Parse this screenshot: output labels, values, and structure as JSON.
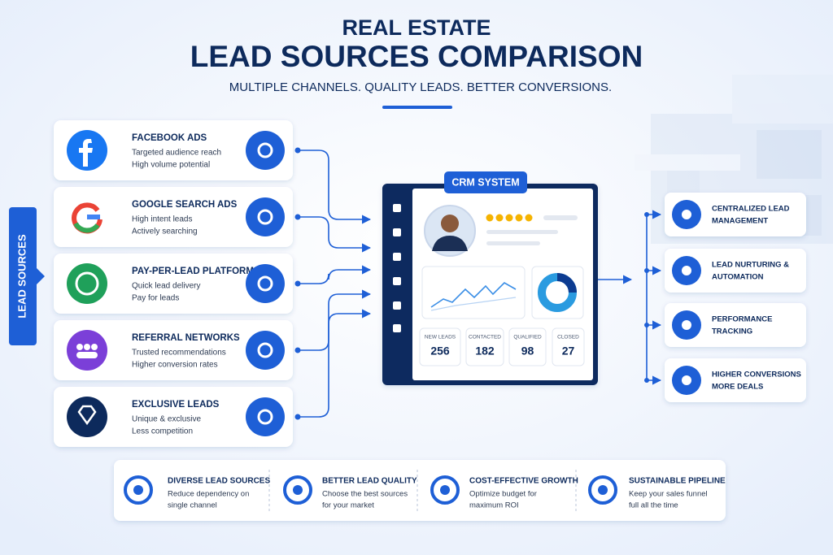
{
  "header": {
    "title_line1": "REAL ESTATE",
    "title_line2": "LEAD SOURCES COMPARISON",
    "subtitle": "MULTIPLE CHANNELS. QUALITY LEADS. BETTER CONVERSIONS."
  },
  "side_label": "LEAD SOURCES",
  "sources": [
    {
      "title": "FACEBOOK ADS",
      "lines": [
        "Targeted audience reach",
        "High volume potential"
      ]
    },
    {
      "title": "GOOGLE SEARCH ADS",
      "lines": [
        "High intent leads",
        "Actively searching"
      ]
    },
    {
      "title": "PAY-PER-LEAD PLATFORMS",
      "lines": [
        "Quick lead delivery",
        "Pay for leads"
      ]
    },
    {
      "title": "REFERRAL NETWORKS",
      "lines": [
        "Trusted recommendations",
        "Higher conversion rates"
      ]
    },
    {
      "title": "EXCLUSIVE LEADS",
      "lines": [
        "Unique & exclusive",
        "Less competition"
      ]
    }
  ],
  "crm": {
    "title": "CRM SYSTEM",
    "stats": [
      {
        "label": "NEW LEADS",
        "value": "256"
      },
      {
        "label": "CONTACTED",
        "value": "182"
      },
      {
        "label": "QUALIFIED",
        "value": "98"
      },
      {
        "label": "CLOSED",
        "value": "27"
      }
    ]
  },
  "outcomes": [
    {
      "lines": [
        "CENTRALIZED LEAD",
        "MANAGEMENT"
      ]
    },
    {
      "lines": [
        "LEAD NURTURING &",
        "AUTOMATION"
      ]
    },
    {
      "lines": [
        "PERFORMANCE",
        "TRACKING"
      ]
    },
    {
      "lines": [
        "HIGHER CONVERSIONS",
        "MORE DEALS"
      ]
    }
  ],
  "benefits": [
    {
      "title": "DIVERSE LEAD SOURCES",
      "lines": [
        "Reduce dependency on",
        "single channel"
      ]
    },
    {
      "title": "BETTER LEAD QUALITY",
      "lines": [
        "Choose the best sources",
        "for your market"
      ]
    },
    {
      "title": "COST-EFFECTIVE GROWTH",
      "lines": [
        "Optimize budget for",
        "maximum ROI"
      ]
    },
    {
      "title": "SUSTAINABLE PIPELINE",
      "lines": [
        "Keep your sales funnel",
        "full all the time"
      ]
    }
  ]
}
